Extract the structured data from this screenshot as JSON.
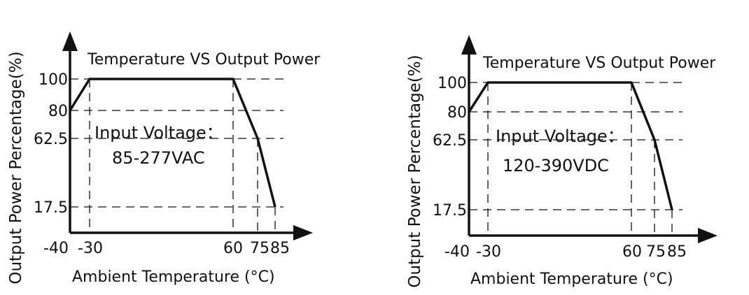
{
  "chart_data": [
    {
      "type": "line",
      "title": "Temperature  VS Output Power",
      "xlabel": "Ambient Temperature (°C)",
      "ylabel": "Output Power Percentage(%)",
      "annotation_lines": [
        "Input Voltage：",
        "85-277VAC"
      ],
      "x_ticks": [
        "-40",
        "-30",
        "60",
        "75",
        "85"
      ],
      "y_ticks": [
        "100",
        "80",
        "62.5",
        "17.5"
      ],
      "xlim": [
        -40,
        85
      ],
      "ylim": [
        0,
        100
      ],
      "grid": "dashed guide lines at tick values",
      "series": [
        {
          "x": [
            -40,
            -30,
            60,
            75,
            85
          ],
          "y": [
            80,
            100,
            100,
            62.5,
            17.5
          ]
        }
      ]
    },
    {
      "type": "line",
      "title": "Temperature  VS Output Power",
      "xlabel": "Ambient Temperature (°C)",
      "ylabel": "Output Power Percentage(%)",
      "annotation_lines": [
        "Input Voltage：",
        "120-390VDC"
      ],
      "x_ticks": [
        "-40",
        "-30",
        "60",
        "75",
        "85"
      ],
      "y_ticks": [
        "100",
        "80",
        "62.5",
        "17.5"
      ],
      "xlim": [
        -40,
        85
      ],
      "ylim": [
        0,
        100
      ],
      "grid": "dashed guide lines at tick values",
      "series": [
        {
          "x": [
            -40,
            -30,
            60,
            75,
            85
          ],
          "y": [
            80,
            100,
            100,
            62.5,
            17.5
          ]
        }
      ]
    }
  ]
}
